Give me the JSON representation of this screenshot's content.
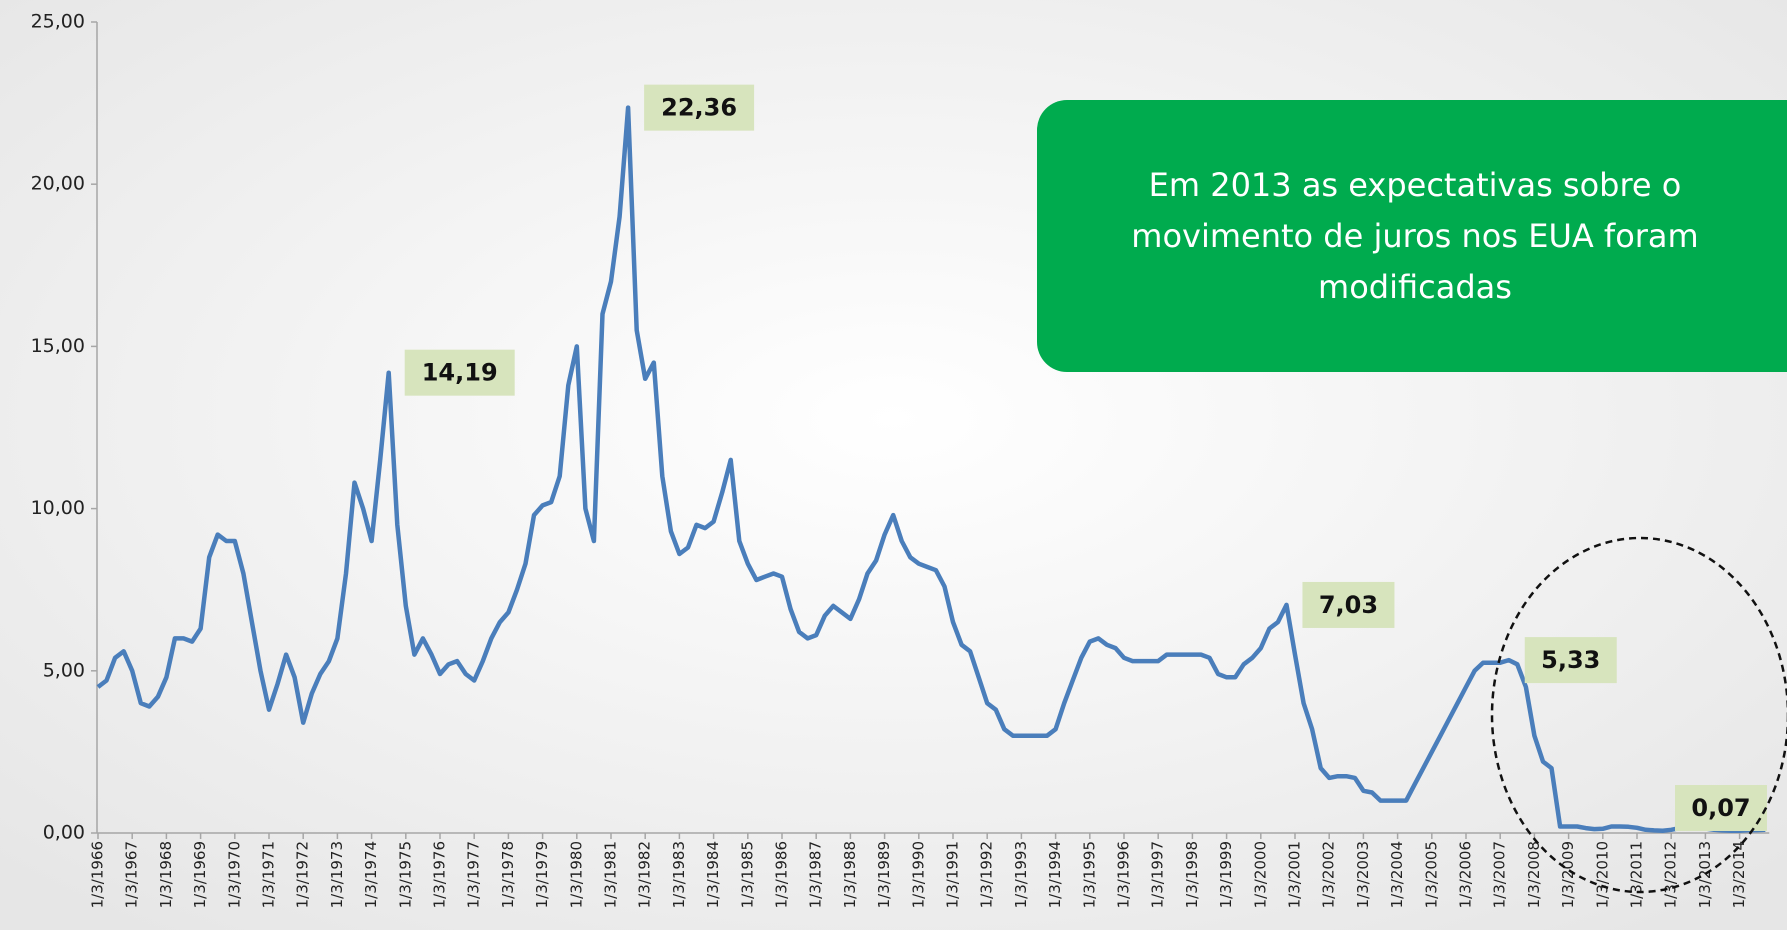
{
  "chart_data": {
    "type": "line",
    "annotation": {
      "lines": [
        "Em 2013 as expectativas sobre o",
        "movimento de juros nos EUA foram",
        "modificadas"
      ],
      "color": "#00ab4e"
    },
    "ylim": [
      0,
      25
    ],
    "yticks": [
      {
        "value": 0,
        "label": "0,00"
      },
      {
        "value": 5,
        "label": "5,00"
      },
      {
        "value": 10,
        "label": "10,00"
      },
      {
        "value": 15,
        "label": "15,00"
      },
      {
        "value": 20,
        "label": "20,00"
      },
      {
        "value": 25,
        "label": "25,00"
      }
    ],
    "categories": [
      "1/3/1966",
      null,
      null,
      null,
      "1/3/1967",
      null,
      null,
      null,
      "1/3/1968",
      null,
      null,
      null,
      "1/3/1969",
      null,
      null,
      null,
      "1/3/1970",
      null,
      null,
      null,
      "1/3/1971",
      null,
      null,
      null,
      "1/3/1972",
      null,
      null,
      null,
      "1/3/1973",
      null,
      null,
      null,
      "1/3/1974",
      null,
      null,
      null,
      "1/3/1975",
      null,
      null,
      null,
      "1/3/1976",
      null,
      null,
      null,
      "1/3/1977",
      null,
      null,
      null,
      "1/3/1978",
      null,
      null,
      null,
      "1/3/1979",
      null,
      null,
      null,
      "1/3/1980",
      null,
      null,
      null,
      "1/3/1981",
      null,
      null,
      null,
      "1/3/1982",
      null,
      null,
      null,
      "1/3/1983",
      null,
      null,
      null,
      "1/3/1984",
      null,
      null,
      null,
      "1/3/1985",
      null,
      null,
      null,
      "1/3/1986",
      null,
      null,
      null,
      "1/3/1987",
      null,
      null,
      null,
      "1/3/1988",
      null,
      null,
      null,
      "1/3/1989",
      null,
      null,
      null,
      "1/3/1990",
      null,
      null,
      null,
      "1/3/1991",
      null,
      null,
      null,
      "1/3/1992",
      null,
      null,
      null,
      "1/3/1993",
      null,
      null,
      null,
      "1/3/1994",
      null,
      null,
      null,
      "1/3/1995",
      null,
      null,
      null,
      "1/3/1996",
      null,
      null,
      null,
      "1/3/1997",
      null,
      null,
      null,
      "1/3/1998",
      null,
      null,
      null,
      "1/3/1999",
      null,
      null,
      null,
      "1/3/2000",
      null,
      null,
      null,
      "1/3/2001",
      null,
      null,
      null,
      "1/3/2002",
      null,
      null,
      null,
      "1/3/2003",
      null,
      null,
      null,
      "1/3/2004",
      null,
      null,
      null,
      "1/3/2005",
      null,
      null,
      null,
      "1/3/2006",
      null,
      null,
      null,
      "1/3/2007",
      null,
      null,
      null,
      "1/3/2008",
      null,
      null,
      null,
      "1/3/2009",
      null,
      null,
      null,
      "1/3/2010",
      null,
      null,
      null,
      "1/3/2011",
      null,
      null,
      null,
      "1/3/2012",
      null,
      null,
      null,
      "1/3/2013",
      null,
      null,
      null,
      "1/3/2014",
      null,
      null,
      null
    ],
    "series": [
      {
        "color": "#4a7ebb",
        "values": [
          4.5,
          4.7,
          5.4,
          5.6,
          5.0,
          4.0,
          3.9,
          4.2,
          4.8,
          6.0,
          6.0,
          5.9,
          6.3,
          8.5,
          9.2,
          9.0,
          9.0,
          8.0,
          6.5,
          5.0,
          3.8,
          4.6,
          5.5,
          4.8,
          3.4,
          4.3,
          4.9,
          5.3,
          6.0,
          8.0,
          10.8,
          10.0,
          9.0,
          11.5,
          14.19,
          9.5,
          7.0,
          5.5,
          6.0,
          5.5,
          4.9,
          5.2,
          5.3,
          4.9,
          4.7,
          5.3,
          6.0,
          6.5,
          6.8,
          7.5,
          8.3,
          9.8,
          10.1,
          10.2,
          11.0,
          13.8,
          15.0,
          10.0,
          9.0,
          16.0,
          17.0,
          19.0,
          22.36,
          15.5,
          14.0,
          14.5,
          11.0,
          9.3,
          8.6,
          8.8,
          9.5,
          9.4,
          9.6,
          10.5,
          11.5,
          9.0,
          8.3,
          7.8,
          7.9,
          8.0,
          7.9,
          6.9,
          6.2,
          6.0,
          6.1,
          6.7,
          7.0,
          6.8,
          6.6,
          7.2,
          8.0,
          8.4,
          9.2,
          9.8,
          9.0,
          8.5,
          8.3,
          8.2,
          8.1,
          7.6,
          6.5,
          5.8,
          5.6,
          4.8,
          4.0,
          3.8,
          3.2,
          3.0,
          3.0,
          3.0,
          3.0,
          3.0,
          3.2,
          4.0,
          4.7,
          5.4,
          5.9,
          6.0,
          5.8,
          5.7,
          5.4,
          5.3,
          5.3,
          5.3,
          5.3,
          5.5,
          5.5,
          5.5,
          5.5,
          5.5,
          5.4,
          4.9,
          4.8,
          4.8,
          5.2,
          5.4,
          5.7,
          6.3,
          6.5,
          7.03,
          5.5,
          4.0,
          3.2,
          2.0,
          1.7,
          1.75,
          1.75,
          1.7,
          1.3,
          1.25,
          1.0,
          1.0,
          1.0,
          1.0,
          1.5,
          2.0,
          2.5,
          3.0,
          3.5,
          4.0,
          4.5,
          5.0,
          5.25,
          5.25,
          5.25,
          5.33,
          5.2,
          4.5,
          3.0,
          2.2,
          2.0,
          0.2,
          0.2,
          0.2,
          0.15,
          0.12,
          0.13,
          0.2,
          0.2,
          0.19,
          0.16,
          0.1,
          0.08,
          0.07,
          0.1,
          0.15,
          0.14,
          0.16,
          0.14,
          0.1,
          0.08,
          0.07,
          0.07,
          0.09,
          0.09,
          0.1
        ],
        "value_labels": [
          null,
          null,
          null,
          null,
          null,
          null,
          null,
          null,
          null,
          null,
          null,
          null,
          null,
          null,
          null,
          null,
          null,
          null,
          null,
          null,
          null,
          null,
          null,
          null,
          null,
          null,
          null,
          null,
          null,
          null,
          null,
          null,
          null,
          null,
          "14,19",
          null,
          null,
          null,
          null,
          null,
          null,
          null,
          null,
          null,
          null,
          null,
          null,
          null,
          null,
          null,
          null,
          null,
          null,
          null,
          null,
          null,
          null,
          null,
          null,
          null,
          null,
          null,
          "22,36",
          null,
          null,
          null,
          null,
          null,
          null,
          null,
          null,
          null,
          null,
          null,
          null,
          null,
          null,
          null,
          null,
          null,
          null,
          null,
          null,
          null,
          null,
          null,
          null,
          null,
          null,
          null,
          null,
          null,
          null,
          null,
          null,
          null,
          null,
          null,
          null,
          null,
          null,
          null,
          null,
          null,
          null,
          null,
          null,
          null,
          null,
          null,
          null,
          null,
          null,
          null,
          null,
          null,
          null,
          null,
          null,
          null,
          null,
          null,
          null,
          null,
          null,
          null,
          null,
          null,
          null,
          null,
          null,
          null,
          null,
          null,
          null,
          null,
          null,
          null,
          null,
          "7,03",
          null,
          null,
          null,
          null,
          null,
          null,
          null,
          null,
          null,
          null,
          null,
          null,
          null,
          null,
          null,
          null,
          null,
          null,
          null,
          null,
          null,
          null,
          null,
          null,
          null,
          "5,33",
          null,
          null,
          null,
          null,
          null,
          null,
          null,
          null,
          null,
          null,
          null,
          null,
          null,
          null,
          null,
          null,
          null,
          null,
          null,
          null,
          null,
          null,
          null,
          null,
          null,
          "0,07",
          null,
          null,
          null,
          null
        ]
      }
    ]
  }
}
